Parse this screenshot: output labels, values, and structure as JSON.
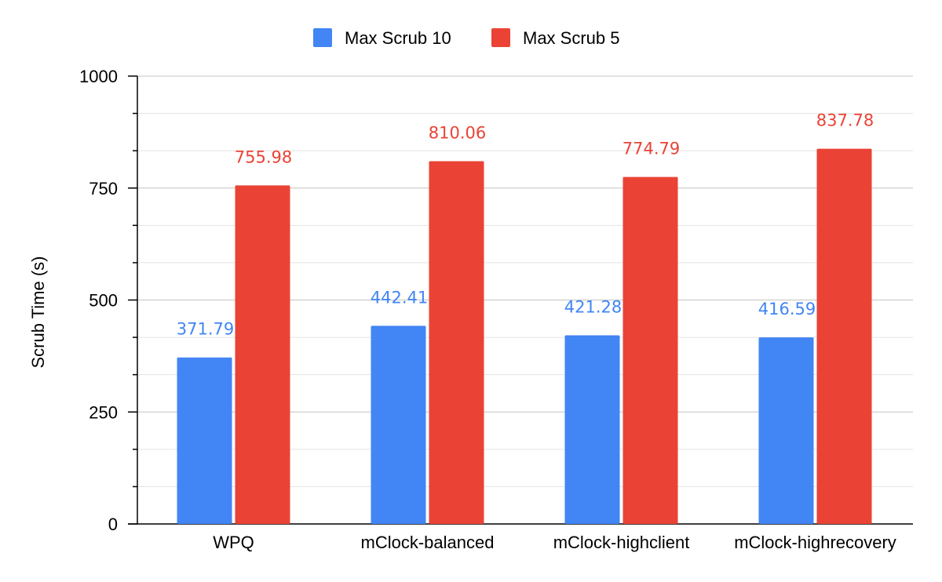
{
  "chart_data": {
    "type": "bar",
    "title": "",
    "xlabel": "",
    "ylabel": "Scrub Time (s)",
    "ylim": [
      0,
      1000
    ],
    "yticks": [
      "0",
      "250",
      "500",
      "750",
      "1000"
    ],
    "grid": true,
    "legend_position": "top-center",
    "categories": [
      "WPQ",
      "mClock-balanced",
      "mClock-highclient",
      "mClock-highrecovery"
    ],
    "series": [
      {
        "name": "Max Scrub 10",
        "color": "#4285f4",
        "values": [
          371.79,
          442.41,
          421.28,
          416.59
        ],
        "labels": [
          "371.79",
          "442.41",
          "421.28",
          "416.59"
        ]
      },
      {
        "name": "Max Scrub 5",
        "color": "#ea4335",
        "values": [
          755.98,
          810.06,
          774.79,
          837.78
        ],
        "labels": [
          "755.98",
          "810.06",
          "774.79",
          "837.78"
        ]
      }
    ]
  }
}
